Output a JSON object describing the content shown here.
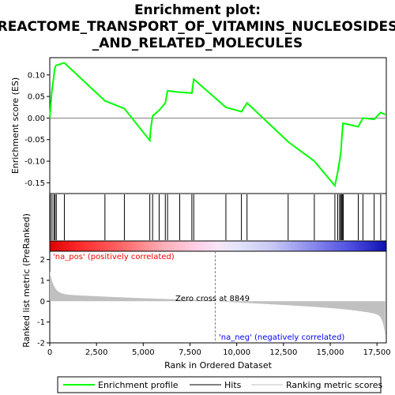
{
  "chart_data": {
    "type": "line",
    "title_lines": [
      "Enrichment plot:",
      "REACTOME_TRANSPORT_OF_VITAMINS_NUCLEOSIDES",
      "_AND_RELATED_MOLECULES"
    ],
    "es_panel": {
      "ylabel": "Enrichment score (ES)",
      "ylim": [
        -0.175,
        0.14
      ],
      "yticks": [
        0.1,
        0.05,
        0.0,
        -0.05,
        -0.1,
        -0.15
      ],
      "ytick_labels": [
        "0.10",
        "0.05",
        "0.00",
        "-0.05",
        "-0.10",
        "-0.15"
      ],
      "series": [
        {
          "name": "Enrichment profile",
          "color": "#00ff00",
          "x": [
            0,
            50,
            120,
            200,
            260,
            330,
            780,
            2950,
            3990,
            5350,
            5400,
            5500,
            5850,
            6180,
            6300,
            6950,
            7600,
            7700,
            9420,
            10250,
            10550,
            12750,
            14150,
            15250,
            15400,
            15500,
            15580,
            15620,
            15680,
            16500,
            16750,
            17350,
            17700,
            17950
          ],
          "y": [
            0.0,
            0.03,
            0.065,
            0.09,
            0.115,
            0.122,
            0.128,
            0.04,
            0.022,
            -0.052,
            -0.025,
            0.005,
            0.018,
            0.035,
            0.063,
            0.06,
            0.058,
            0.09,
            0.025,
            0.015,
            0.035,
            -0.055,
            -0.1,
            -0.157,
            -0.125,
            -0.1,
            -0.075,
            -0.045,
            -0.012,
            -0.02,
            0.0,
            -0.003,
            0.013,
            0.008
          ]
        }
      ]
    },
    "hits": [
      30,
      120,
      220,
      280,
      350,
      780,
      2950,
      3990,
      5350,
      5500,
      5850,
      6180,
      6300,
      6950,
      7600,
      7700,
      9420,
      10250,
      10550,
      12750,
      14150,
      15250,
      15400,
      15500,
      15560,
      15600,
      15650,
      15700,
      16500,
      16750,
      17350,
      17700
    ],
    "heatmap_labels": {
      "pos": "'na_pos' (positively correlated)",
      "neg": "'na_neg' (negatively correlated)"
    },
    "metric_panel": {
      "ylabel": "Ranked list metric (PreRanked)",
      "ylim": [
        -2,
        2.4
      ],
      "yticks": [
        2,
        1,
        0,
        -1,
        -2
      ],
      "ytick_labels": [
        "2",
        "1",
        "0",
        "-1",
        "-2"
      ],
      "zero_cross_label": "Zero cross at 8849",
      "zero_cross": 8849
    },
    "x_axis": {
      "label": "Rank in Ordered Dataset",
      "xlim": [
        0,
        18000
      ],
      "ticks": [
        0,
        2500,
        5000,
        7500,
        10000,
        12500,
        15000,
        17500
      ],
      "tick_labels": [
        "0",
        "2,500",
        "5,000",
        "7,500",
        "10,000",
        "12,500",
        "15,000",
        "17,500"
      ],
      "n": 17950
    },
    "legend": {
      "placement": "bottom",
      "items": [
        {
          "label": "Enrichment profile",
          "color": "#00ff00"
        },
        {
          "label": "Hits",
          "color": "#000000"
        },
        {
          "label": "Ranking metric scores",
          "color": "#c0c0c0"
        }
      ]
    },
    "colors": {
      "profile": "#00ff00",
      "pos_text": "#ff0000",
      "neg_text": "#0000ff",
      "metric_fill": "#c0c0c0"
    }
  }
}
